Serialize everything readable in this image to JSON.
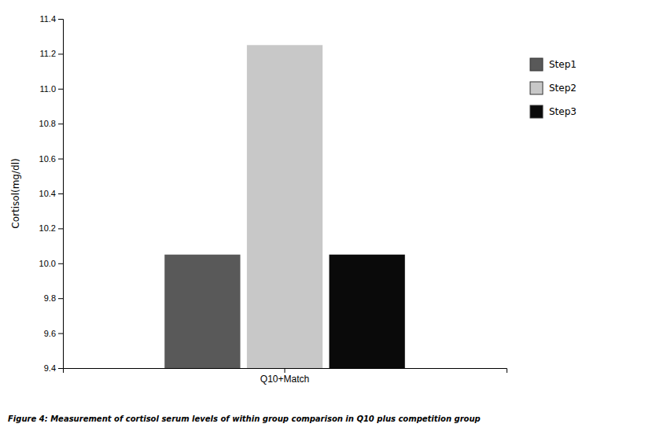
{
  "chart_data": {
    "type": "bar",
    "categories": [
      "Q10+Match"
    ],
    "series": [
      {
        "name": "Step1",
        "color": "#595959",
        "values": [
          10.05
        ]
      },
      {
        "name": "Step2",
        "color": "#c8c8c8",
        "values": [
          11.25
        ]
      },
      {
        "name": "Step3",
        "color": "#0a0a0a",
        "values": [
          10.05
        ]
      }
    ],
    "ylabel": "Cortisol(mg/dl)",
    "ylim": [
      9.4,
      11.4
    ],
    "yticks": [
      9.4,
      9.6,
      9.8,
      {
        "value": 10.0,
        "label": "10.0"
      },
      10.2,
      10.4,
      10.6,
      10.8,
      {
        "value": 11.0,
        "label": "11.0"
      },
      11.2,
      11.4
    ],
    "grid": false,
    "legend": "right",
    "caption": "Figure 4: Measurement of cortisol serum levels of within group comparison in Q10 plus competition group"
  }
}
